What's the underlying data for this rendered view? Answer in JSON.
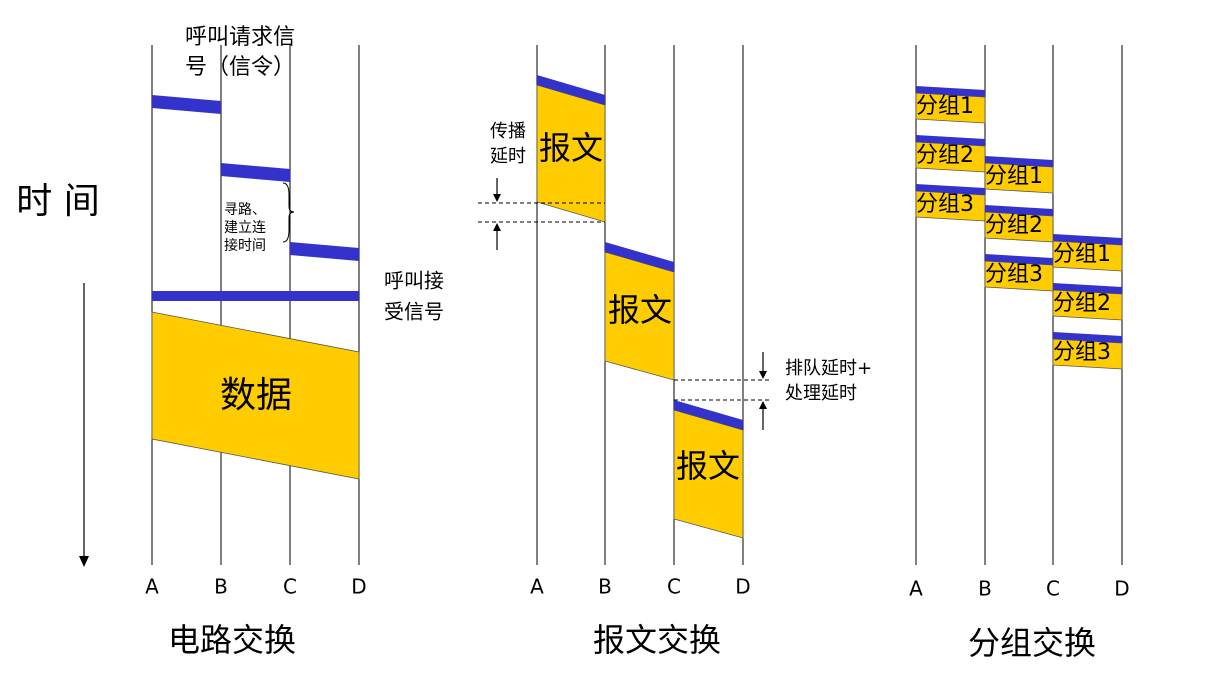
{
  "time_label": "时 间",
  "panels": [
    {
      "title": "电路交换",
      "nodes": [
        "A",
        "B",
        "C",
        "D"
      ],
      "call_request": [
        "呼叫请求信",
        "号（信令）"
      ],
      "setup_time": [
        "寻路、",
        "建立连",
        "接时间"
      ],
      "call_accept": [
        "呼叫接",
        "受信号"
      ],
      "data": "数据"
    },
    {
      "title": "报文交换",
      "nodes": [
        "A",
        "B",
        "C",
        "D"
      ],
      "propagation_delay": [
        "传播",
        "延时"
      ],
      "messages": [
        "报文",
        "报文",
        "报文"
      ],
      "queue_delay": [
        "排队延时+",
        "处理延时"
      ]
    },
    {
      "title": "分组交换",
      "nodes": [
        "A",
        "B",
        "C",
        "D"
      ],
      "packets": [
        [
          "分组1",
          "分组2",
          "分组3"
        ],
        [
          "分组1",
          "分组2",
          "分组3"
        ],
        [
          "分组1",
          "分组2",
          "分组3"
        ]
      ]
    }
  ]
}
